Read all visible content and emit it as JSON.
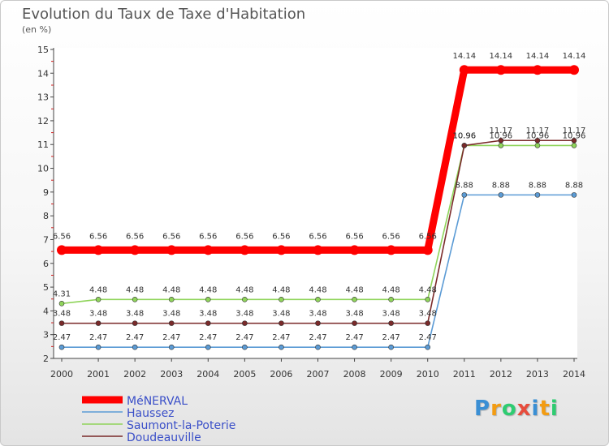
{
  "header": {
    "title": "Evolution du Taux de Taxe d'Habitation",
    "subtitle": "(en %)"
  },
  "logo": {
    "text": "Proxiti",
    "letters": [
      "P",
      "r",
      "o",
      "x",
      "i",
      "t",
      "i"
    ],
    "colors": [
      "#3a8fd4",
      "#f39c12",
      "#2ecc71",
      "#e74c3c",
      "#3a8fd4",
      "#f39c12",
      "#2ecc71"
    ]
  },
  "chart_data": {
    "type": "line",
    "title": "Evolution du Taux de Taxe d'Habitation",
    "subtitle": "(en %)",
    "xlabel": "",
    "ylabel": "",
    "x": [
      "2000",
      "2001",
      "2002",
      "2003",
      "2004",
      "2005",
      "2006",
      "2007",
      "2008",
      "2009",
      "2010",
      "2011",
      "2012",
      "2013",
      "2014"
    ],
    "ylim": [
      2,
      15
    ],
    "yticks": [
      2,
      3,
      4,
      5,
      6,
      7,
      8,
      9,
      10,
      11,
      12,
      13,
      14,
      15
    ],
    "grid": false,
    "legend_position": "bottom-left",
    "series": [
      {
        "name": "MéNERVAL",
        "color": "#ff0000",
        "values": [
          6.56,
          6.56,
          6.56,
          6.56,
          6.56,
          6.56,
          6.56,
          6.56,
          6.56,
          6.56,
          6.56,
          14.14,
          14.14,
          14.14,
          14.14
        ],
        "labels": [
          "6.56",
          "6.56",
          "6.56",
          "6.56",
          "6.56",
          "6.56",
          "6.56",
          "6.56",
          "6.56",
          "6.56",
          "6.56",
          "14.14",
          "14.14",
          "14.14",
          "14.14"
        ]
      },
      {
        "name": "Haussez",
        "color": "#5b9bd5",
        "values": [
          2.47,
          2.47,
          2.47,
          2.47,
          2.47,
          2.47,
          2.47,
          2.47,
          2.47,
          2.47,
          2.47,
          8.88,
          8.88,
          8.88,
          8.88
        ],
        "labels": [
          "2.47",
          "2.47",
          "2.47",
          "2.47",
          "2.47",
          "2.47",
          "2.47",
          "2.47",
          "2.47",
          "2.47",
          "2.47",
          "8.88",
          "8.88",
          "8.88",
          "8.88"
        ]
      },
      {
        "name": "Saumont-la-Poterie",
        "color": "#8fd45a",
        "values": [
          4.31,
          4.48,
          4.48,
          4.48,
          4.48,
          4.48,
          4.48,
          4.48,
          4.48,
          4.48,
          4.48,
          10.96,
          10.96,
          10.96,
          10.96
        ],
        "labels": [
          "4.31",
          "4.48",
          "4.48",
          "4.48",
          "4.48",
          "4.48",
          "4.48",
          "4.48",
          "4.48",
          "4.48",
          "4.48",
          "10.96",
          "10.96",
          "10.96",
          "10.96"
        ]
      },
      {
        "name": "Doudeauville",
        "color": "#7a2a2a",
        "values": [
          3.48,
          3.48,
          3.48,
          3.48,
          3.48,
          3.48,
          3.48,
          3.48,
          3.48,
          3.48,
          3.48,
          10.96,
          11.17,
          11.17,
          11.17
        ],
        "labels": [
          "3.48",
          "3.48",
          "3.48",
          "3.48",
          "3.48",
          "3.48",
          "3.48",
          "3.48",
          "3.48",
          "3.48",
          "3.48",
          "10.96",
          "11.17",
          "11.17",
          "11.17"
        ]
      }
    ]
  }
}
